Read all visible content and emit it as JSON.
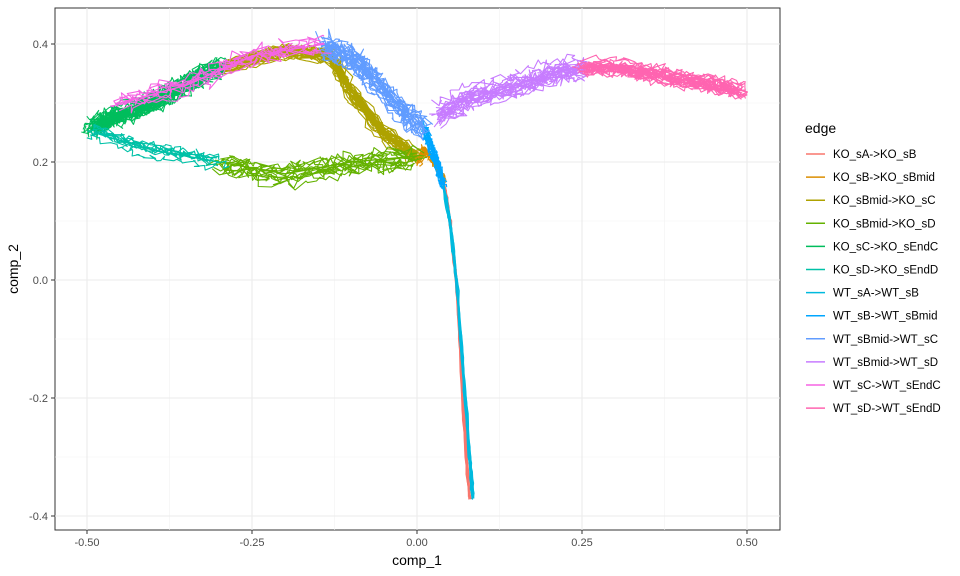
{
  "chart_data": {
    "type": "line",
    "xlabel": "comp_1",
    "ylabel": "comp_2",
    "xlim": [
      -0.5,
      0.5
    ],
    "ylim": [
      -0.4,
      0.4
    ],
    "x_ticks": [
      -0.5,
      -0.25,
      0.0,
      0.25,
      0.5
    ],
    "x_tick_labels": [
      "-0.50",
      "-0.25",
      "0.00",
      "0.25",
      "0.50"
    ],
    "y_ticks": [
      -0.4,
      -0.2,
      0.0,
      0.2,
      0.4
    ],
    "y_tick_labels": [
      "-0.4",
      "-0.2",
      "0.0",
      "0.2",
      "0.4"
    ],
    "grid": true,
    "legend": {
      "title": "edge",
      "position": "right"
    },
    "series": [
      {
        "name": "KO_sA->KO_sB",
        "color": "#F8766D",
        "x": [
          0.08,
          0.075,
          0.07,
          0.065,
          0.06,
          0.055,
          0.05,
          0.045,
          0.04
        ],
        "y": [
          -0.37,
          -0.3,
          -0.2,
          -0.1,
          0.0,
          0.05,
          0.1,
          0.14,
          0.17
        ]
      },
      {
        "name": "KO_sB->KO_sBmid",
        "color": "#DB8E00",
        "x": [
          0.04,
          0.03,
          0.02,
          0.01,
          0.0
        ],
        "y": [
          0.17,
          0.19,
          0.21,
          0.22,
          0.2
        ]
      },
      {
        "name": "KO_sBmid->KO_sC",
        "color": "#AEA200",
        "x": [
          0.0,
          -0.05,
          -0.1,
          -0.13,
          -0.2,
          -0.3
        ],
        "y": [
          0.21,
          0.25,
          0.32,
          0.38,
          0.39,
          0.36
        ]
      },
      {
        "name": "KO_sBmid->KO_sD",
        "color": "#64B200",
        "x": [
          0.0,
          -0.1,
          -0.2,
          -0.3
        ],
        "y": [
          0.21,
          0.2,
          0.18,
          0.2
        ]
      },
      {
        "name": "KO_sC->KO_sEndC",
        "color": "#00BD5C",
        "x": [
          -0.3,
          -0.35,
          -0.4,
          -0.45,
          -0.49
        ],
        "y": [
          0.36,
          0.33,
          0.3,
          0.28,
          0.26
        ]
      },
      {
        "name": "KO_sD->KO_sEndD",
        "color": "#00C1A7",
        "x": [
          -0.3,
          -0.4,
          -0.49
        ],
        "y": [
          0.2,
          0.22,
          0.25
        ]
      },
      {
        "name": "WT_sA->WT_sB",
        "color": "#00BADE",
        "x": [
          0.085,
          0.08,
          0.07,
          0.06,
          0.05,
          0.04
        ],
        "y": [
          -0.37,
          -0.3,
          -0.15,
          0.0,
          0.1,
          0.16
        ]
      },
      {
        "name": "WT_sB->WT_sBmid",
        "color": "#00A6FF",
        "x": [
          0.04,
          0.03,
          0.02,
          0.01
        ],
        "y": [
          0.16,
          0.2,
          0.23,
          0.26
        ]
      },
      {
        "name": "WT_sBmid->WT_sC",
        "color": "#619CFF",
        "x": [
          0.01,
          -0.03,
          -0.07,
          -0.1,
          -0.14
        ],
        "y": [
          0.26,
          0.3,
          0.35,
          0.38,
          0.4
        ]
      },
      {
        "name": "WT_sBmid->WT_sD",
        "color": "#C77CFF",
        "x": [
          0.03,
          0.08,
          0.15,
          0.2,
          0.25
        ],
        "y": [
          0.28,
          0.31,
          0.33,
          0.35,
          0.36
        ]
      },
      {
        "name": "WT_sC->WT_sEndC",
        "color": "#F564E3",
        "x": [
          -0.14,
          -0.25,
          -0.35,
          -0.45
        ],
        "y": [
          0.4,
          0.38,
          0.33,
          0.3
        ]
      },
      {
        "name": "WT_sD->WT_sEndD",
        "color": "#FF64B0",
        "x": [
          0.25,
          0.3,
          0.35,
          0.4,
          0.45,
          0.49
        ],
        "y": [
          0.36,
          0.36,
          0.35,
          0.34,
          0.33,
          0.32
        ]
      }
    ]
  }
}
